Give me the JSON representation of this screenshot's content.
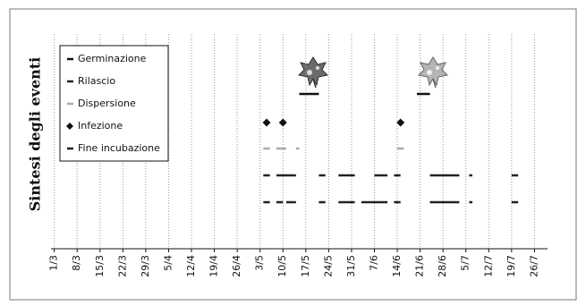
{
  "chart_data": {
    "type": "timeline",
    "y_label": "Sintesi degli eventi",
    "xlim": [
      -1,
      151
    ],
    "xticks": [
      {
        "value": 0,
        "label": "1/3"
      },
      {
        "value": 7,
        "label": "8/3"
      },
      {
        "value": 14,
        "label": "15/3"
      },
      {
        "value": 21,
        "label": "22/3"
      },
      {
        "value": 28,
        "label": "29/3"
      },
      {
        "value": 35,
        "label": "5/4"
      },
      {
        "value": 42,
        "label": "12/4"
      },
      {
        "value": 49,
        "label": "19/4"
      },
      {
        "value": 56,
        "label": "26/4"
      },
      {
        "value": 63,
        "label": "3/5"
      },
      {
        "value": 70,
        "label": "10/5"
      },
      {
        "value": 77,
        "label": "17/5"
      },
      {
        "value": 84,
        "label": "24/5"
      },
      {
        "value": 91,
        "label": "31/5"
      },
      {
        "value": 98,
        "label": "7/6"
      },
      {
        "value": 105,
        "label": "14/6"
      },
      {
        "value": 112,
        "label": "21/6"
      },
      {
        "value": 119,
        "label": "28/6"
      },
      {
        "value": 126,
        "label": "5/7"
      },
      {
        "value": 133,
        "label": "12/7"
      },
      {
        "value": 140,
        "label": "19/7"
      },
      {
        "value": 147,
        "label": "26/7"
      }
    ],
    "grid": true,
    "series": [
      {
        "name": "Germinazione",
        "color": "#111111",
        "marker": "bar",
        "segments": [
          [
            75,
            81
          ],
          [
            111,
            115
          ]
        ]
      },
      {
        "name": "Rilascio",
        "color": "#222222",
        "marker": "bar",
        "segments": [
          [
            64,
            66
          ],
          [
            68,
            74
          ],
          [
            81,
            83
          ],
          [
            87,
            92
          ],
          [
            98,
            102
          ],
          [
            104,
            106
          ],
          [
            115,
            124
          ],
          [
            127,
            128
          ],
          [
            140,
            142
          ]
        ]
      },
      {
        "name": "Dispersione",
        "color": "#aaaaaa",
        "marker": "bar",
        "segments": [
          [
            64,
            66
          ],
          [
            68,
            71
          ],
          [
            74,
            75
          ],
          [
            105,
            107
          ]
        ]
      },
      {
        "name": "Infezione",
        "color": "#111111",
        "marker": "diamond",
        "points": [
          65,
          70,
          106
        ]
      },
      {
        "name": "Fine incubazione",
        "color": "#222222",
        "marker": "bar",
        "segments": [
          [
            64,
            66
          ],
          [
            68,
            70
          ],
          [
            71,
            74
          ],
          [
            81,
            83
          ],
          [
            87,
            92
          ],
          [
            94,
            102
          ],
          [
            104,
            106
          ],
          [
            115,
            124
          ],
          [
            127,
            128
          ],
          [
            140,
            142
          ]
        ]
      }
    ]
  }
}
